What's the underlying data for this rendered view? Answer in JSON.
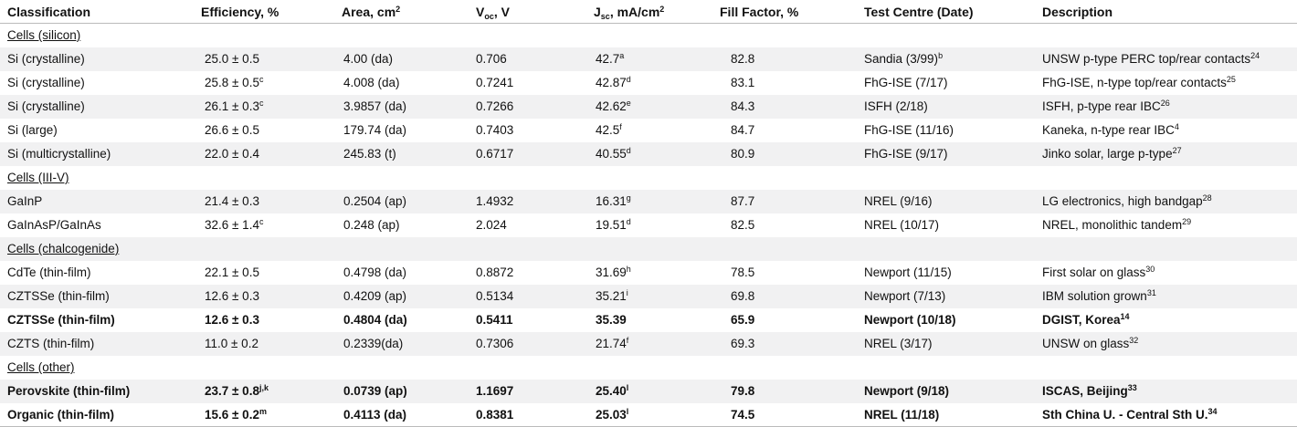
{
  "table": {
    "header": [
      "Classification",
      "Efficiency, %",
      [
        "Area, cm",
        {
          "sup": "2"
        }
      ],
      [
        "V",
        {
          "sub": "oc"
        },
        ", V"
      ],
      [
        "J",
        {
          "sub": "sc"
        },
        ", mA/cm",
        {
          "sup": "2"
        }
      ],
      "Fill Factor, %",
      "Test Centre (Date)",
      "Description"
    ],
    "sections": [
      {
        "title": "Cells (silicon)",
        "rows": [
          {
            "bold": false,
            "cells": [
              "Si (crystalline)",
              "25.0 ± 0.5",
              "4.00 (da)",
              "0.706",
              [
                "42.7",
                {
                  "sup": "a"
                }
              ],
              "82.8",
              [
                "Sandia (3/99)",
                {
                  "sup": "b"
                }
              ],
              [
                "UNSW p-type PERC top/rear contacts",
                {
                  "sup": "24"
                }
              ]
            ]
          },
          {
            "bold": false,
            "cells": [
              "Si (crystalline)",
              [
                "25.8 ± 0.5",
                {
                  "sup": "c"
                }
              ],
              "4.008 (da)",
              "0.7241",
              [
                "42.87",
                {
                  "sup": "d"
                }
              ],
              "83.1",
              "FhG-ISE (7/17)",
              [
                "FhG-ISE, n-type top/rear contacts",
                {
                  "sup": "25"
                }
              ]
            ]
          },
          {
            "bold": false,
            "cells": [
              "Si (crystalline)",
              [
                "26.1 ± 0.3",
                {
                  "sup": "c"
                }
              ],
              "3.9857 (da)",
              "0.7266",
              [
                "42.62",
                {
                  "sup": "e"
                }
              ],
              "84.3",
              "ISFH (2/18)",
              [
                "ISFH, p-type rear IBC",
                {
                  "sup": "26"
                }
              ]
            ]
          },
          {
            "bold": false,
            "cells": [
              "Si (large)",
              "26.6 ± 0.5",
              "179.74 (da)",
              "0.7403",
              [
                "42.5",
                {
                  "sup": "f"
                }
              ],
              "84.7",
              "FhG-ISE (11/16)",
              [
                "Kaneka, n-type rear IBC",
                {
                  "sup": "4"
                }
              ]
            ]
          },
          {
            "bold": false,
            "cells": [
              "Si (multicrystalline)",
              "22.0 ± 0.4",
              "245.83 (t)",
              "0.6717",
              [
                "40.55",
                {
                  "sup": "d"
                }
              ],
              "80.9",
              "FhG-ISE (9/17)",
              [
                "Jinko solar, large p-type",
                {
                  "sup": "27"
                }
              ]
            ]
          }
        ]
      },
      {
        "title": "Cells (III-V)",
        "rows": [
          {
            "bold": false,
            "cells": [
              "GaInP",
              "21.4 ± 0.3",
              "0.2504 (ap)",
              "1.4932",
              [
                "16.31",
                {
                  "sup": "g"
                }
              ],
              "87.7",
              "NREL (9/16)",
              [
                "LG electronics, high bandgap",
                {
                  "sup": "28"
                }
              ]
            ]
          },
          {
            "bold": false,
            "cells": [
              "GaInAsP/GaInAs",
              [
                "32.6 ± 1.4",
                {
                  "sup": "c"
                }
              ],
              "0.248 (ap)",
              "2.024",
              [
                "19.51",
                {
                  "sup": "d"
                }
              ],
              "82.5",
              "NREL (10/17)",
              [
                "NREL, monolithic tandem",
                {
                  "sup": "29"
                }
              ]
            ]
          }
        ]
      },
      {
        "title": "Cells (chalcogenide)",
        "rows": [
          {
            "bold": false,
            "cells": [
              "CdTe (thin-film)",
              "22.1 ± 0.5",
              "0.4798 (da)",
              "0.8872",
              [
                "31.69",
                {
                  "sup": "h"
                }
              ],
              "78.5",
              "Newport (11/15)",
              [
                "First solar on glass",
                {
                  "sup": "30"
                }
              ]
            ]
          },
          {
            "bold": false,
            "cells": [
              "CZTSSe (thin-film)",
              "12.6 ± 0.3",
              "0.4209 (ap)",
              "0.5134",
              [
                "35.21",
                {
                  "sup": "i"
                }
              ],
              "69.8",
              "Newport (7/13)",
              [
                "IBM solution grown",
                {
                  "sup": "31"
                }
              ]
            ]
          },
          {
            "bold": true,
            "cells": [
              "CZTSSe (thin-film)",
              "12.6 ± 0.3",
              "0.4804 (da)",
              "0.5411",
              "35.39",
              "65.9",
              "Newport (10/18)",
              [
                "DGIST, Korea",
                {
                  "sup": "14"
                }
              ]
            ]
          },
          {
            "bold": false,
            "cells": [
              "CZTS (thin-film)",
              "11.0 ± 0.2",
              "0.2339(da)",
              "0.7306",
              [
                "21.74",
                {
                  "sup": "f"
                }
              ],
              "69.3",
              "NREL (3/17)",
              [
                "UNSW on glass",
                {
                  "sup": "32"
                }
              ]
            ]
          }
        ]
      },
      {
        "title": "Cells (other)",
        "rows": [
          {
            "bold": true,
            "cells": [
              "Perovskite (thin-film)",
              [
                "23.7 ± 0.8",
                {
                  "sup": "j,k"
                }
              ],
              "0.0739 (ap)",
              "1.1697",
              [
                "25.40",
                {
                  "sup": "l"
                }
              ],
              "79.8",
              "Newport (9/18)",
              [
                "ISCAS, Beijing",
                {
                  "sup": "33"
                }
              ]
            ]
          },
          {
            "bold": true,
            "cells": [
              "Organic (thin-film)",
              [
                "15.6 ± 0.2",
                {
                  "sup": "m"
                }
              ],
              "0.4113 (da)",
              "0.8381",
              [
                "25.03",
                {
                  "sup": "l"
                }
              ],
              "74.5",
              "NREL (11/18)",
              [
                "Sth China U. - Central Sth U.",
                {
                  "sup": "34"
                }
              ]
            ]
          }
        ]
      }
    ]
  }
}
